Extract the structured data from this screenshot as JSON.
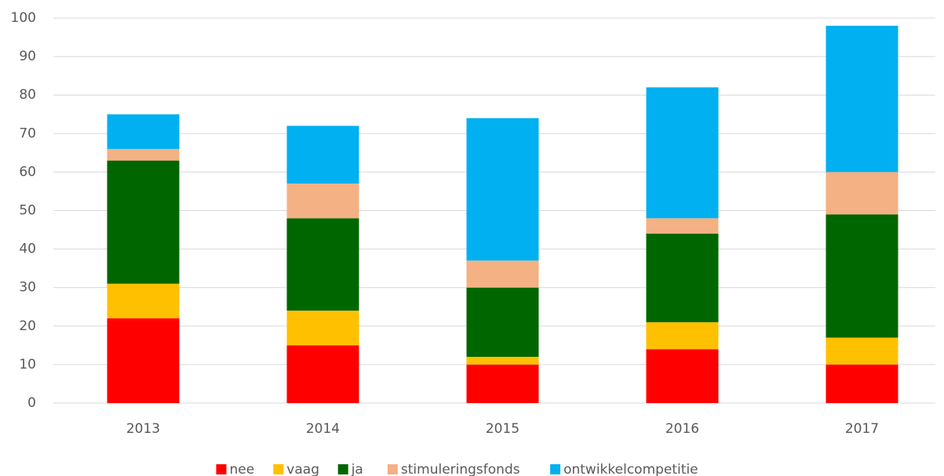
{
  "chart_data": {
    "type": "stacked_bar",
    "categories": [
      "2013",
      "2014",
      "2015",
      "2016",
      "2017"
    ],
    "series": [
      {
        "name": "nee",
        "color": "#ff0000",
        "values": [
          22,
          15,
          10,
          14,
          10
        ]
      },
      {
        "name": "vaag",
        "color": "#ffc000",
        "values": [
          9,
          9,
          2,
          7,
          7
        ]
      },
      {
        "name": "ja",
        "color": "#006600",
        "values": [
          32,
          24,
          18,
          23,
          32
        ]
      },
      {
        "name": "stimuleringsfonds",
        "color": "#f4b183",
        "values": [
          3,
          9,
          7,
          4,
          11
        ]
      },
      {
        "name": "ontwikkelcompetitie",
        "color": "#00b0f0",
        "values": [
          9,
          15,
          37,
          34,
          38
        ]
      }
    ],
    "ylim": [
      0,
      100
    ],
    "yticks": [
      0,
      10,
      20,
      30,
      40,
      50,
      60,
      70,
      80,
      90,
      100
    ],
    "grid": true,
    "legend": "bottom"
  }
}
